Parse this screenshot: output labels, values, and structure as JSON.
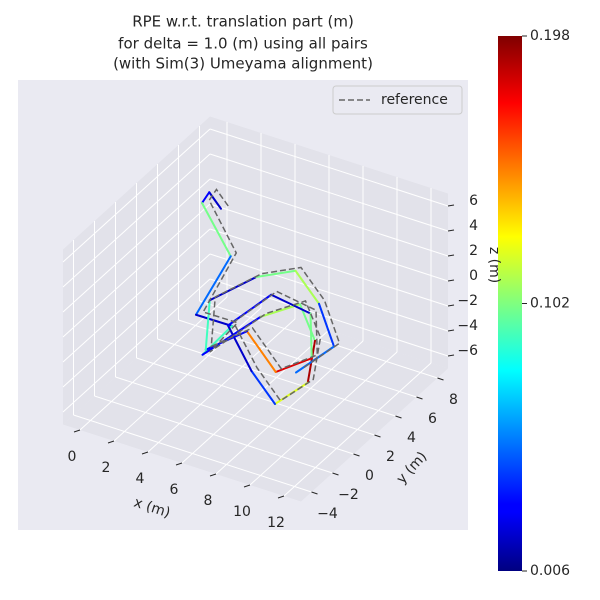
{
  "chart_data": {
    "type": "line3d",
    "title": [
      "RPE w.r.t. translation part (m)",
      "for delta = 1.0 (m) using all pairs",
      "(with Sim(3) Umeyama alignment)"
    ],
    "x_label": "x (m)",
    "y_label": "y (m)",
    "z_label": "z (m)",
    "xlim": [
      -1,
      13
    ],
    "ylim": [
      -5,
      9
    ],
    "zlim": [
      -7,
      7
    ],
    "xticks": [
      0,
      2,
      4,
      6,
      8,
      10,
      12
    ],
    "yticks": [
      {
        "value": -4,
        "label": "−4"
      },
      {
        "value": -2,
        "label": "−2"
      },
      0,
      2,
      4,
      6,
      8
    ],
    "zticks": [
      {
        "value": -6,
        "label": "−6"
      },
      {
        "value": -4,
        "label": "−4"
      },
      {
        "value": -2,
        "label": "−2"
      },
      0,
      2,
      4,
      6
    ],
    "grid": true,
    "legend": "upper right",
    "colormap": "jet",
    "clim": [
      0.006,
      0.198
    ],
    "cticks": [
      0.006,
      0.102,
      0.198
    ],
    "series": [
      {
        "name": "reference",
        "color": "#666666",
        "dashed": true,
        "x": [
          1.8,
          0.8,
          1.3,
          3.2,
          2.8,
          4.2,
          3.8,
          6.2,
          8.2,
          9.7,
          10.2,
          9.2,
          7.2,
          5.2,
          6.2,
          8.2,
          9.2,
          7.7,
          5.7,
          4.2,
          3.2,
          4.7,
          6.7,
          8.7,
          10.2,
          9.2
        ],
        "y": [
          6.2,
          6.7,
          5.2,
          4.7,
          2.2,
          3.2,
          1.2,
          2.7,
          3.2,
          2.2,
          0.7,
          -0.8,
          0.2,
          1.2,
          3.7,
          4.2,
          2.7,
          1.7,
          2.2,
          0.7,
          2.7,
          4.7,
          5.2,
          4.2,
          3.2,
          1.2
        ],
        "z": [
          3.2,
          3.7,
          4.2,
          1.2,
          -1.8,
          -2.8,
          -3.8,
          -0.8,
          0.7,
          -0.8,
          -2.8,
          -3.8,
          -2.8,
          -0.8,
          0.2,
          -0.8,
          -2.8,
          -3.8,
          -1.8,
          -2.8,
          -0.8,
          0.2,
          1.2,
          0.2,
          -1.8,
          -2.8
        ]
      },
      {
        "x": [
          1.5,
          0.5,
          1,
          3,
          2.5,
          4,
          3.5,
          6,
          8,
          9.5,
          10,
          9,
          7,
          5,
          6,
          8,
          9,
          7.5,
          5.5,
          4,
          3,
          4.5,
          6.5,
          8.5,
          10,
          9
        ],
        "y": [
          6,
          6.5,
          5,
          4.5,
          2,
          3,
          1,
          2.5,
          3,
          2,
          0.5,
          -1,
          0,
          1,
          3.5,
          4,
          2.5,
          1.5,
          2,
          0.5,
          2.5,
          4.5,
          5,
          4,
          3,
          1
        ],
        "z": [
          3,
          3.5,
          4,
          1,
          -2,
          -3,
          -4,
          -1,
          0.5,
          -1,
          -3,
          -4,
          -3,
          -1,
          0,
          -1,
          -3,
          -4,
          -2,
          -3,
          -1,
          0,
          1,
          0,
          -2,
          -3
        ],
        "errors": [
          0.02,
          0.03,
          0.1,
          0.05,
          0.02,
          0.09,
          0.03,
          0.11,
          0.1,
          0.19,
          0.12,
          0.04,
          0.02,
          0.03,
          0.02,
          0.1,
          0.18,
          0.15,
          0.03,
          0.09,
          0.02,
          0.1,
          0.11,
          0.04,
          0.05,
          0.02
        ]
      }
    ]
  }
}
